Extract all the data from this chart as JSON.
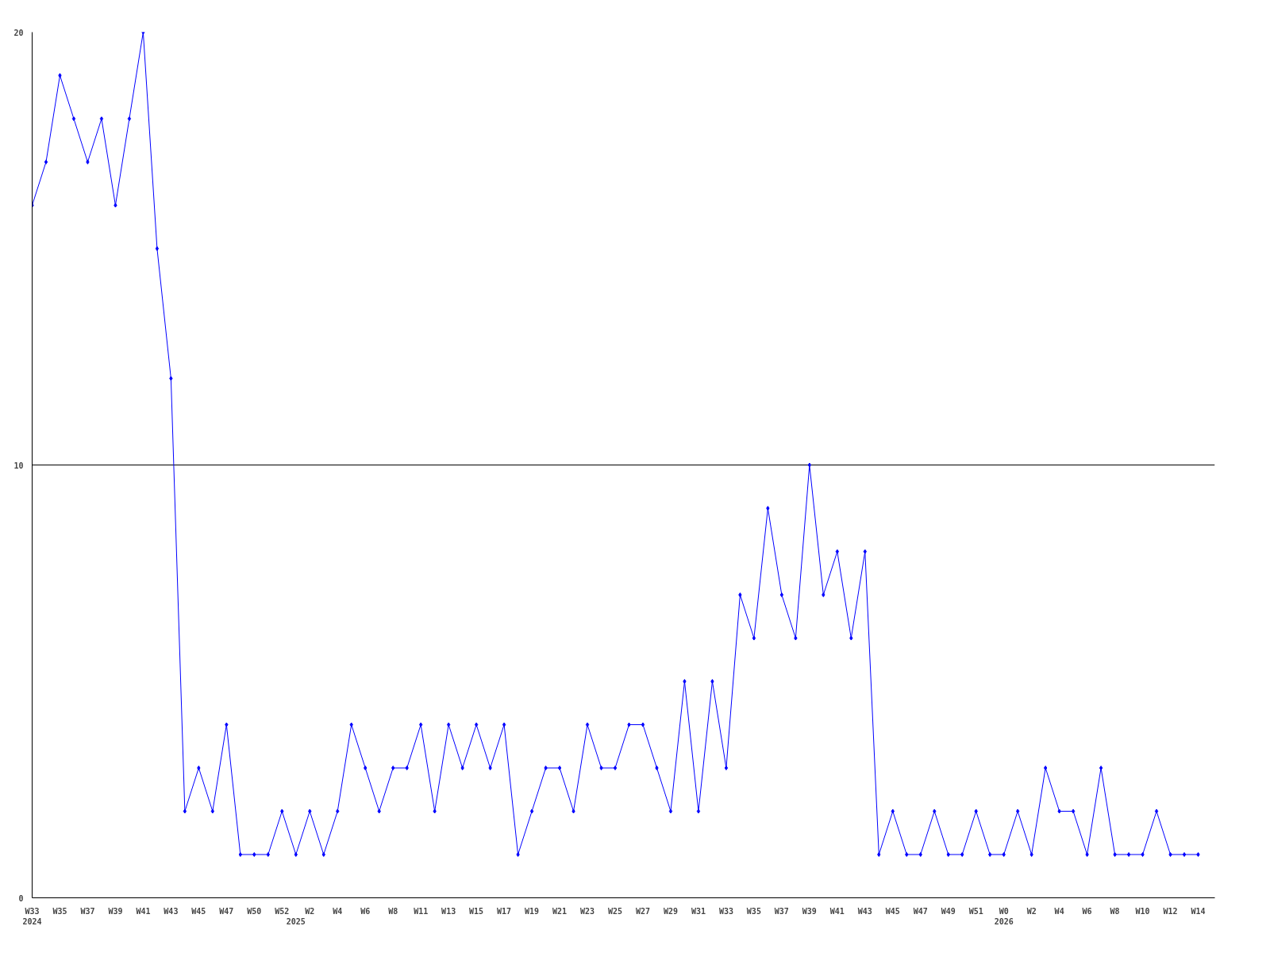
{
  "chart_data": {
    "type": "line",
    "categories": [
      "W33\n2024",
      null,
      "W35",
      null,
      "W37",
      null,
      "W39",
      null,
      "W41",
      null,
      "W43",
      null,
      "W45",
      null,
      "W47",
      null,
      "W50",
      null,
      "W52",
      "\n2025",
      "W2",
      null,
      "W4",
      null,
      "W6",
      null,
      "W8",
      null,
      "W11",
      null,
      "W13",
      null,
      "W15",
      null,
      "W17",
      null,
      "W19",
      null,
      "W21",
      null,
      "W23",
      null,
      "W25",
      null,
      "W27",
      null,
      "W29",
      null,
      "W31",
      null,
      "W33",
      null,
      "W35",
      null,
      "W37",
      null,
      "W39",
      null,
      "W41",
      null,
      "W43",
      null,
      "W45",
      null,
      "W47",
      null,
      "W49",
      null,
      "W51",
      null,
      "W0\n2026",
      null,
      "W2",
      null,
      "W4",
      null,
      "W6",
      null,
      "W8",
      null,
      "W10",
      null,
      "W12",
      null,
      "W14"
    ],
    "series": [
      {
        "color": "#0000ff",
        "values": [
          16,
          17,
          19,
          18,
          17,
          18,
          16,
          18,
          20,
          15,
          12,
          2,
          3,
          2,
          4,
          1,
          1,
          1,
          2,
          1,
          2,
          1,
          2,
          4,
          3,
          2,
          3,
          3,
          4,
          2,
          4,
          3,
          4,
          3,
          4,
          1,
          2,
          3,
          3,
          2,
          4,
          3,
          3,
          4,
          4,
          3,
          2,
          5,
          2,
          5,
          3,
          7,
          6,
          9,
          7,
          6,
          10,
          7,
          8,
          6,
          8,
          1,
          2,
          1,
          1,
          2,
          1,
          1,
          2,
          1,
          1,
          2,
          1,
          3,
          2,
          2,
          1,
          3,
          1,
          1,
          1,
          2,
          1,
          1,
          1
        ]
      }
    ],
    "ylim": [
      0,
      20
    ],
    "yticks": [
      0,
      10,
      20
    ],
    "grid": "y",
    "marker": "diamond",
    "line_style": "solid"
  }
}
